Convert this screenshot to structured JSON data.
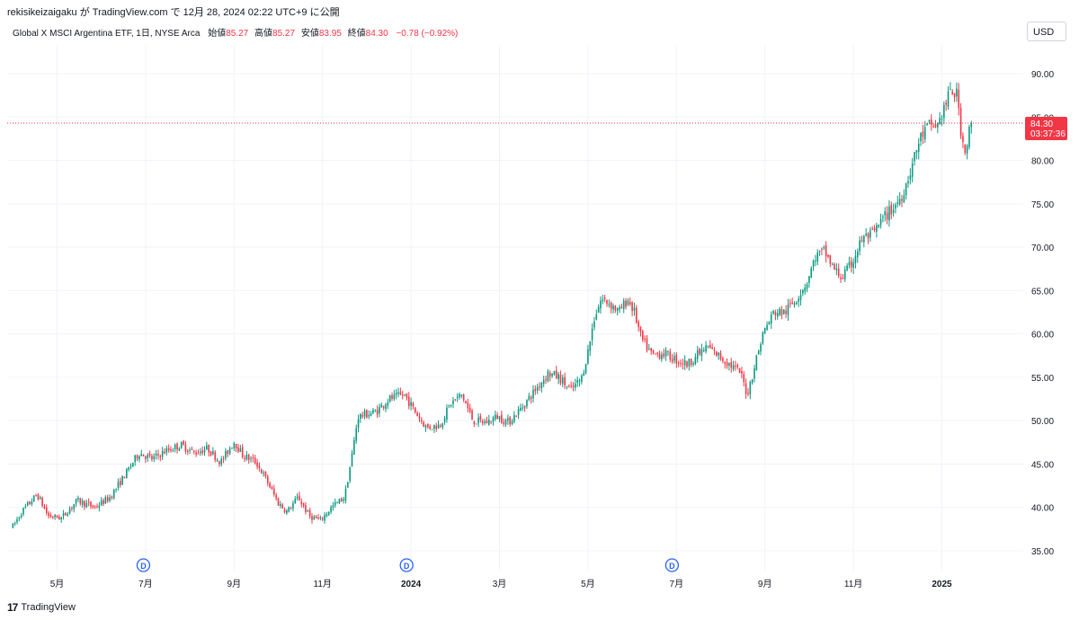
{
  "header": {
    "publish_line": "rekisikeizaigaku が TradingView.com で 12月 28, 2024 02:22 UTC+9 に公開"
  },
  "legend": {
    "symbol": "Global X MSCI Argentina ETF, 1日, NYSE Arca",
    "open_label": "始値",
    "open_value": "85.27",
    "high_label": "高値",
    "high_value": "85.27",
    "low_label": "安値",
    "low_value": "83.95",
    "close_label": "終値",
    "close_value": "84.30",
    "change": "−0.78 (−0.92%)"
  },
  "currency_button": "USD",
  "last_price": {
    "value": "84.30",
    "countdown": "03:37:36"
  },
  "dividend_marker": "D",
  "footer": {
    "logo_text": "TradingView"
  },
  "colors": {
    "up": "#089981",
    "down": "#f23645",
    "grid": "#f0f3fa",
    "text": "#131722",
    "dividend": "#2962ff"
  },
  "chart_data": {
    "type": "candlestick",
    "title": "Global X MSCI Argentina ETF, 1日, NYSE Arca",
    "ylim": [
      32.5,
      92.5
    ],
    "yticks": [
      "35.00",
      "40.00",
      "45.00",
      "50.00",
      "55.00",
      "60.00",
      "65.00",
      "70.00",
      "75.00",
      "80.00",
      "85.00",
      "90.00"
    ],
    "xticks": [
      {
        "label": "5月",
        "month_index": 1
      },
      {
        "label": "7月",
        "month_index": 3
      },
      {
        "label": "9月",
        "month_index": 5
      },
      {
        "label": "11月",
        "month_index": 7
      },
      {
        "label": "2024",
        "month_index": 9,
        "bold": true
      },
      {
        "label": "3月",
        "month_index": 11
      },
      {
        "label": "5月",
        "month_index": 13
      },
      {
        "label": "7月",
        "month_index": 15
      },
      {
        "label": "9月",
        "month_index": 17
      },
      {
        "label": "11月",
        "month_index": 19
      },
      {
        "label": "2025",
        "month_index": 21,
        "bold": true
      }
    ],
    "x_month_start": "2023-04",
    "dividend_month_index": [
      2.95,
      8.9,
      14.9
    ],
    "price_path": [
      [
        0.0,
        37.8
      ],
      [
        0.2,
        39.5
      ],
      [
        0.55,
        41.5
      ],
      [
        0.8,
        39.0
      ],
      [
        1.1,
        38.8
      ],
      [
        1.45,
        40.8
      ],
      [
        1.85,
        40.0
      ],
      [
        2.2,
        41.2
      ],
      [
        2.5,
        43.5
      ],
      [
        2.85,
        46.3
      ],
      [
        3.15,
        45.6
      ],
      [
        3.45,
        46.5
      ],
      [
        3.8,
        47.2
      ],
      [
        4.1,
        46.3
      ],
      [
        4.4,
        46.8
      ],
      [
        4.7,
        45.2
      ],
      [
        5.0,
        47.6
      ],
      [
        5.2,
        46.0
      ],
      [
        5.5,
        45.2
      ],
      [
        5.75,
        43.0
      ],
      [
        6.0,
        40.5
      ],
      [
        6.2,
        39.5
      ],
      [
        6.45,
        41.2
      ],
      [
        6.7,
        39.0
      ],
      [
        6.95,
        38.5
      ],
      [
        7.2,
        40.0
      ],
      [
        7.5,
        41.2
      ],
      [
        7.65,
        45.5
      ],
      [
        7.8,
        50.5
      ],
      [
        8.2,
        51.0
      ],
      [
        8.5,
        52.5
      ],
      [
        8.85,
        53.0
      ],
      [
        9.1,
        51.0
      ],
      [
        9.35,
        49.2
      ],
      [
        9.65,
        49.5
      ],
      [
        9.9,
        52.0
      ],
      [
        10.15,
        53.0
      ],
      [
        10.4,
        50.0
      ],
      [
        10.7,
        49.8
      ],
      [
        10.95,
        50.5
      ],
      [
        11.2,
        49.8
      ],
      [
        11.5,
        51.5
      ],
      [
        11.8,
        53.5
      ],
      [
        12.1,
        55.5
      ],
      [
        12.35,
        55.0
      ],
      [
        12.6,
        53.5
      ],
      [
        12.85,
        54.8
      ],
      [
        13.0,
        58.0
      ],
      [
        13.15,
        62.0
      ],
      [
        13.3,
        64.0
      ],
      [
        13.5,
        63.5
      ],
      [
        13.7,
        62.5
      ],
      [
        13.9,
        64.0
      ],
      [
        14.05,
        62.5
      ],
      [
        14.2,
        59.5
      ],
      [
        14.45,
        57.5
      ],
      [
        14.7,
        57.8
      ],
      [
        15.0,
        57.0
      ],
      [
        15.25,
        56.5
      ],
      [
        15.45,
        57.5
      ],
      [
        15.7,
        58.5
      ],
      [
        15.95,
        57.5
      ],
      [
        16.2,
        56.5
      ],
      [
        16.45,
        55.5
      ],
      [
        16.6,
        53.0
      ],
      [
        16.75,
        56.0
      ],
      [
        16.95,
        60.0
      ],
      [
        17.2,
        62.5
      ],
      [
        17.45,
        62.5
      ],
      [
        17.7,
        64.0
      ],
      [
        17.95,
        66.0
      ],
      [
        18.15,
        69.0
      ],
      [
        18.35,
        69.5
      ],
      [
        18.55,
        67.5
      ],
      [
        18.75,
        66.5
      ],
      [
        18.95,
        68.0
      ],
      [
        19.2,
        71.0
      ],
      [
        19.45,
        71.5
      ],
      [
        19.7,
        73.5
      ],
      [
        19.9,
        74.5
      ],
      [
        20.1,
        76.0
      ],
      [
        20.3,
        79.0
      ],
      [
        20.5,
        82.5
      ],
      [
        20.7,
        84.0
      ],
      [
        20.9,
        84.0
      ],
      [
        21.05,
        86.0
      ],
      [
        21.2,
        88.0
      ],
      [
        21.35,
        87.5
      ],
      [
        21.45,
        82.5
      ],
      [
        21.55,
        81.0
      ],
      [
        21.65,
        84.5
      ],
      [
        21.7,
        84.3
      ]
    ],
    "last_close": 84.3
  }
}
